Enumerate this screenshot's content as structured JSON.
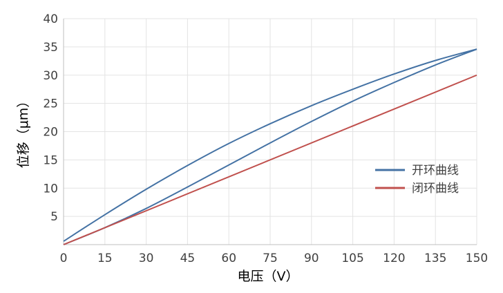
{
  "chart_data": {
    "type": "line",
    "title": "",
    "xlabel": "电压（V）",
    "ylabel": "位移（μm）",
    "xlim": [
      0,
      150
    ],
    "ylim": [
      0,
      40
    ],
    "xticks": [
      "0",
      "15",
      "30",
      "45",
      "60",
      "75",
      "90",
      "105",
      "120",
      "135",
      "150"
    ],
    "yticks": [
      "5",
      "10",
      "15",
      "20",
      "25",
      "30",
      "35",
      "40"
    ],
    "grid": true,
    "legend_position": "right",
    "series": [
      {
        "name": "开环曲线",
        "color": "#4472a4",
        "branches": [
          {
            "x": [
              0,
              15,
              30,
              45,
              60,
              75,
              90,
              105,
              120,
              135,
              150
            ],
            "y": [
              0.6,
              5.3,
              9.8,
              14.0,
              17.9,
              21.4,
              24.6,
              27.5,
              30.2,
              32.6,
              34.6
            ]
          },
          {
            "x": [
              0,
              15,
              30,
              45,
              60,
              75,
              90,
              105,
              120,
              135,
              150
            ],
            "y": [
              0,
              3.0,
              6.4,
              10.2,
              14.1,
              18.0,
              21.8,
              25.4,
              28.7,
              31.8,
              34.6
            ]
          }
        ]
      },
      {
        "name": "闭环曲线",
        "color": "#c0504d",
        "branches": [
          {
            "x": [
              0,
              150
            ],
            "y": [
              0,
              30.0
            ]
          }
        ]
      }
    ]
  }
}
